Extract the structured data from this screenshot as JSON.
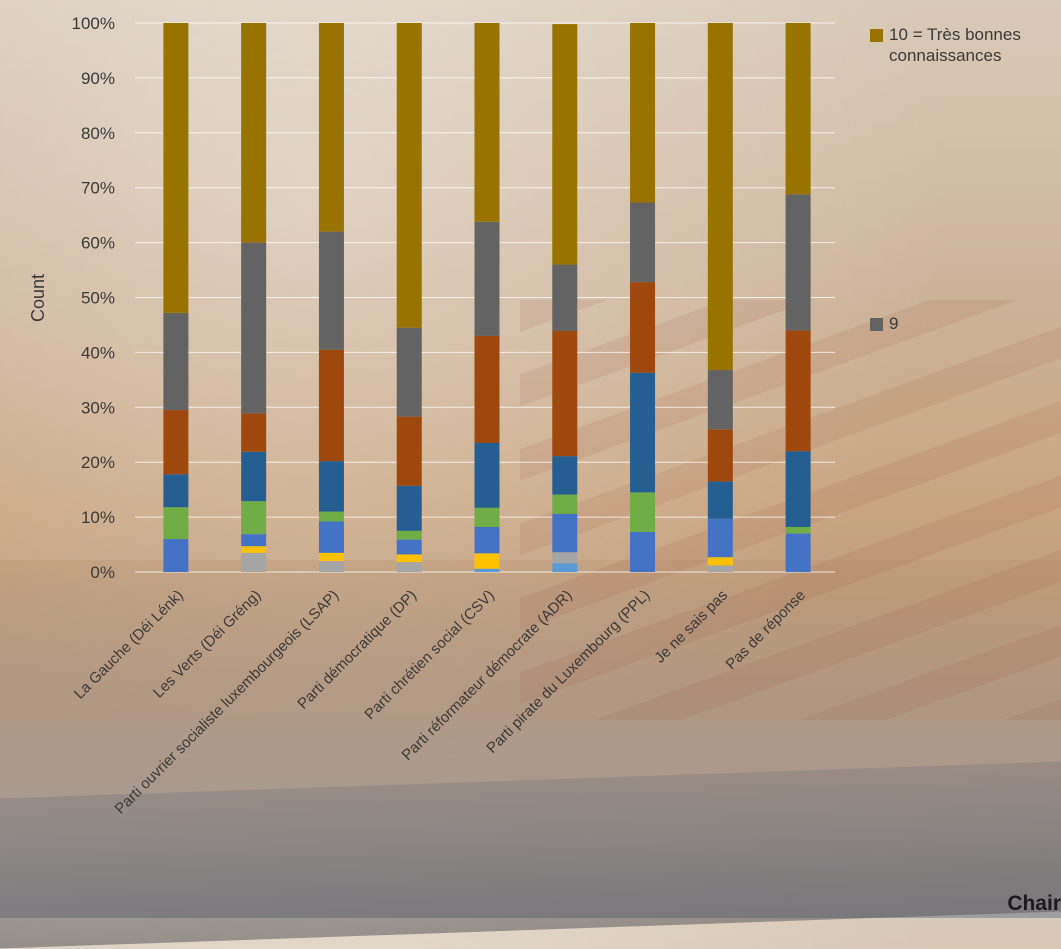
{
  "chart_data": {
    "type": "bar",
    "stacked": true,
    "percent": true,
    "ylabel": "Count",
    "yticks": [
      "0%",
      "10%",
      "20%",
      "30%",
      "40%",
      "50%",
      "60%",
      "70%",
      "80%",
      "90%",
      "100%"
    ],
    "ylim": [
      0,
      100
    ],
    "grid": true,
    "legend_position": "right",
    "categories": [
      "La Gauche (Déi Lénk)",
      "Les Verts (Déi Gréng)",
      "Parti ouvrier socialiste luxembourgeois (LSAP)",
      "Parti démocratique (DP)",
      "Parti chrétien social (CSV)",
      "Parti réformateur démocrate (ADR)",
      "Parti pirate du Luxembourg (PPL)",
      "Je ne sais pas",
      "Pas de réponse"
    ],
    "series": [
      {
        "name": "",
        "color": "#5b9bd5",
        "values": [
          0,
          0,
          0,
          0,
          0.6,
          1.6,
          0,
          0,
          0
        ]
      },
      {
        "name": "",
        "color": "#a5a5a5",
        "values": [
          0,
          3.5,
          2.0,
          1.8,
          0,
          2.0,
          0,
          1.2,
          0
        ]
      },
      {
        "name": "",
        "color": "#ffc000",
        "values": [
          0,
          1.2,
          1.5,
          1.4,
          2.8,
          0,
          0,
          1.5,
          0
        ]
      },
      {
        "name": "",
        "color": "#4472c4",
        "values": [
          6.0,
          2.2,
          5.7,
          2.7,
          4.8,
          7.0,
          7.3,
          7.0,
          7.0
        ]
      },
      {
        "name": "",
        "color": "#70ad47",
        "values": [
          5.8,
          6.0,
          1.8,
          1.6,
          3.5,
          3.5,
          7.2,
          0,
          1.2
        ]
      },
      {
        "name": "",
        "color": "#255e91",
        "values": [
          6.0,
          9.0,
          9.2,
          8.2,
          11.8,
          7.0,
          21.8,
          6.8,
          13.8
        ]
      },
      {
        "name": "",
        "color": "#9e480e",
        "values": [
          11.7,
          7.0,
          20.3,
          12.6,
          19.5,
          22.8,
          16.5,
          9.5,
          22.0
        ]
      },
      {
        "name": "9",
        "color": "#636363",
        "values": [
          17.7,
          31.1,
          21.5,
          16.2,
          20.8,
          12.1,
          14.5,
          10.8,
          24.8
        ]
      },
      {
        "name": "10 =  Très bonnes connaissances",
        "color": "#997300",
        "values": [
          52.8,
          40.0,
          38.0,
          55.5,
          36.2,
          43.8,
          32.7,
          63.2,
          31.2
        ]
      }
    ]
  },
  "legend": [
    {
      "label": "10 =  Très bonnes connaissances",
      "color": "#997300"
    },
    {
      "label": "9",
      "color": "#636363"
    }
  ],
  "corner_text": "Chair"
}
